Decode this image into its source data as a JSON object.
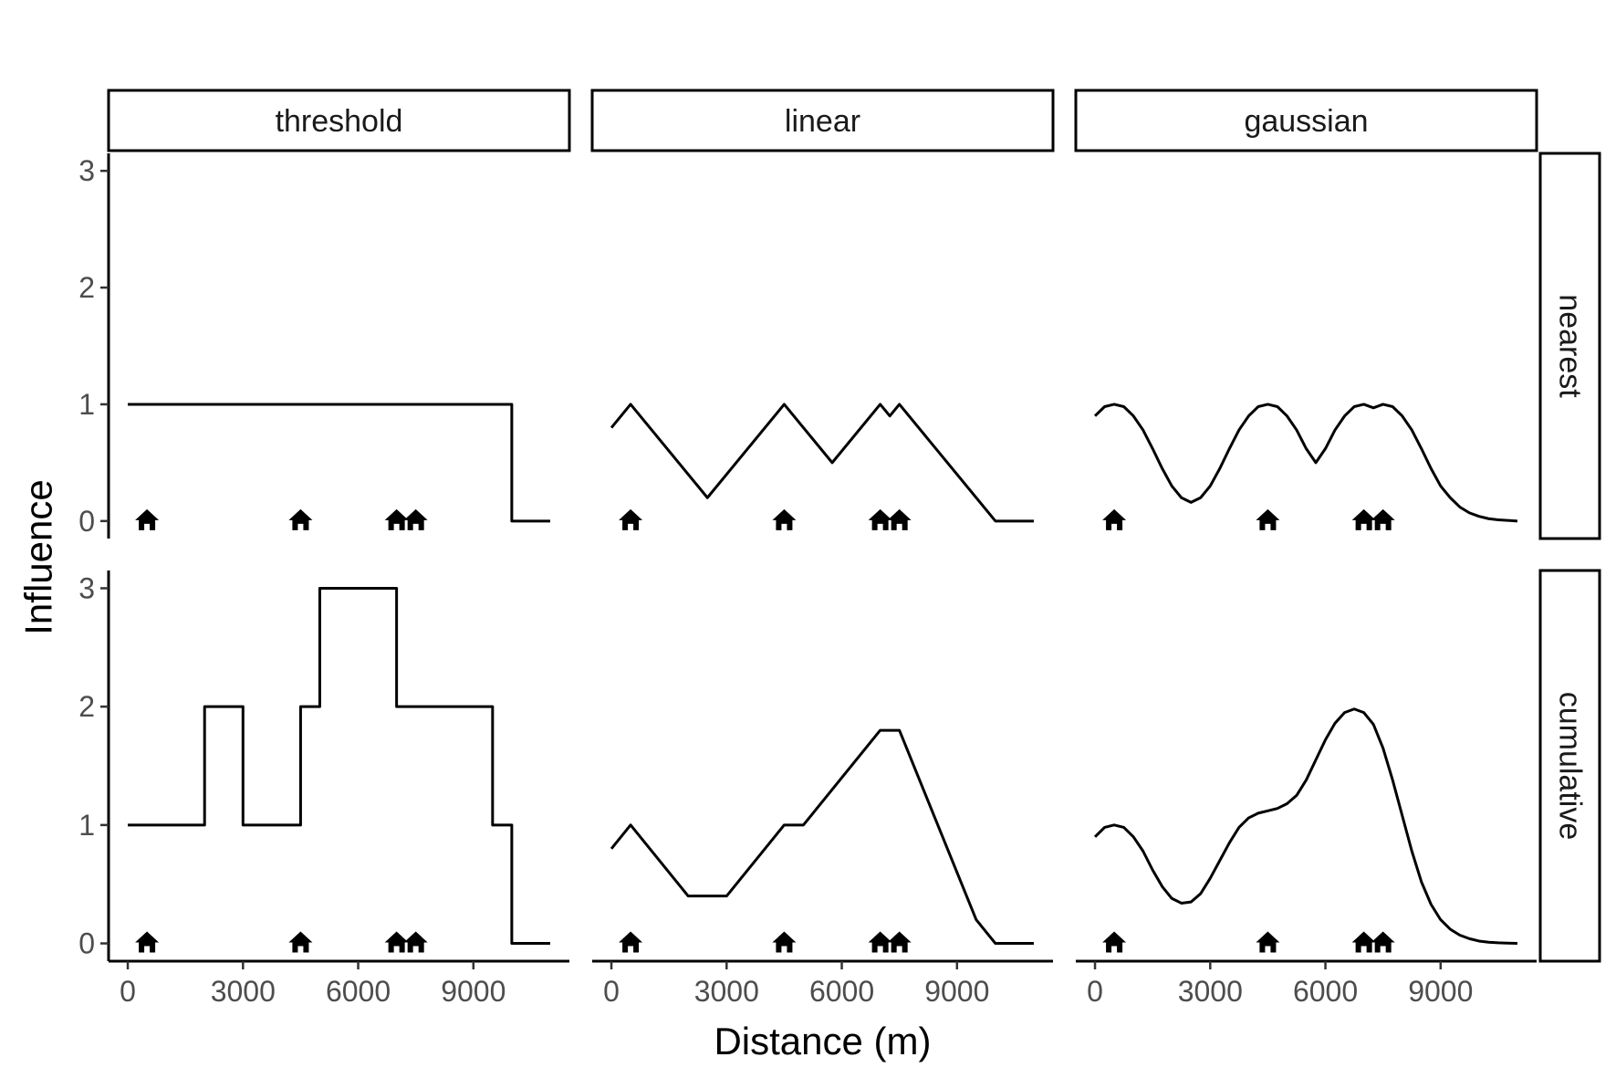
{
  "chart_data": {
    "type": "line",
    "layout": "facet-grid",
    "xlabel": "Distance (m)",
    "ylabel": "Influence",
    "xlim": [
      -500,
      11500
    ],
    "ylim": [
      -0.15,
      3.15
    ],
    "x_ticks": [
      0,
      3000,
      6000,
      9000
    ],
    "y_ticks": [
      0,
      1,
      2,
      3
    ],
    "grid": false,
    "columns": [
      "threshold",
      "linear",
      "gaussian"
    ],
    "rows": [
      "nearest",
      "cumulative"
    ],
    "house_markers": {
      "x": [
        500,
        4500,
        7000,
        7500
      ],
      "y": 0,
      "icon": "house-icon"
    },
    "panels": [
      {
        "col": "threshold",
        "row": "nearest",
        "x": [
          0,
          10000,
          10000,
          11000
        ],
        "y": [
          1,
          1,
          0,
          0
        ]
      },
      {
        "col": "linear",
        "row": "nearest",
        "x": [
          0,
          500,
          2500,
          4500,
          5750,
          7000,
          7250,
          7500,
          10000,
          11000
        ],
        "y": [
          0.8,
          1,
          0.2,
          1,
          0.5,
          1,
          0.9,
          1,
          0,
          0
        ]
      },
      {
        "col": "gaussian",
        "row": "nearest",
        "x": [
          0,
          250,
          500,
          750,
          1000,
          1250,
          1500,
          1750,
          2000,
          2250,
          2500,
          2750,
          3000,
          3250,
          3500,
          3750,
          4000,
          4250,
          4500,
          4750,
          5000,
          5250,
          5500,
          5750,
          6000,
          6250,
          6500,
          6750,
          7000,
          7250,
          7500,
          7750,
          8000,
          8250,
          8500,
          8750,
          9000,
          9250,
          9500,
          9750,
          10000,
          10250,
          10500,
          10750,
          11000
        ],
        "y": [
          0.9,
          0.98,
          1.0,
          0.98,
          0.9,
          0.78,
          0.62,
          0.45,
          0.3,
          0.2,
          0.16,
          0.2,
          0.3,
          0.45,
          0.62,
          0.78,
          0.9,
          0.98,
          1.0,
          0.98,
          0.9,
          0.78,
          0.62,
          0.5,
          0.62,
          0.78,
          0.9,
          0.98,
          1.0,
          0.97,
          1.0,
          0.98,
          0.9,
          0.78,
          0.62,
          0.45,
          0.3,
          0.2,
          0.12,
          0.07,
          0.04,
          0.02,
          0.01,
          0.005,
          0.0
        ]
      },
      {
        "col": "threshold",
        "row": "cumulative",
        "x": [
          0,
          2000,
          2000,
          3000,
          3000,
          4500,
          4500,
          5000,
          5000,
          7000,
          7000,
          9500,
          9500,
          10000,
          10000,
          11000
        ],
        "y": [
          1,
          1,
          2,
          2,
          1,
          1,
          2,
          2,
          3,
          3,
          2,
          2,
          1,
          1,
          0,
          0
        ]
      },
      {
        "col": "linear",
        "row": "cumulative",
        "x": [
          0,
          500,
          2000,
          3000,
          4500,
          5000,
          7000,
          7500,
          9500,
          10000,
          11000
        ],
        "y": [
          0.8,
          1,
          0.4,
          0.4,
          1,
          1,
          1.8,
          1.8,
          0.2,
          0,
          0
        ]
      },
      {
        "col": "gaussian",
        "row": "cumulative",
        "x": [
          0,
          250,
          500,
          750,
          1000,
          1250,
          1500,
          1750,
          2000,
          2250,
          2500,
          2750,
          3000,
          3250,
          3500,
          3750,
          4000,
          4250,
          4500,
          4750,
          5000,
          5250,
          5500,
          5750,
          6000,
          6250,
          6500,
          6750,
          7000,
          7250,
          7500,
          7750,
          8000,
          8250,
          8500,
          8750,
          9000,
          9250,
          9500,
          9750,
          10000,
          10250,
          10500,
          10750,
          11000
        ],
        "y": [
          0.9,
          0.98,
          1.0,
          0.98,
          0.9,
          0.78,
          0.62,
          0.48,
          0.38,
          0.34,
          0.35,
          0.42,
          0.55,
          0.7,
          0.85,
          0.98,
          1.06,
          1.1,
          1.12,
          1.14,
          1.18,
          1.25,
          1.38,
          1.55,
          1.72,
          1.86,
          1.95,
          1.98,
          1.95,
          1.85,
          1.65,
          1.38,
          1.08,
          0.78,
          0.52,
          0.33,
          0.2,
          0.12,
          0.07,
          0.04,
          0.02,
          0.01,
          0.005,
          0.002,
          0.0
        ]
      }
    ]
  }
}
